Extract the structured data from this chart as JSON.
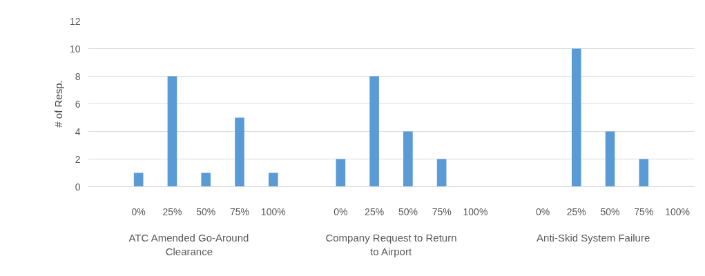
{
  "chart_data": {
    "type": "bar",
    "ylabel": "# of Resp.",
    "categories": [
      null,
      "0%",
      "25%",
      "50%",
      "75%",
      "100%",
      null,
      "0%",
      "25%",
      "50%",
      "75%",
      "100%",
      null,
      "0%",
      "25%",
      "50%",
      "75%",
      "100%"
    ],
    "values": [
      null,
      1,
      8,
      1,
      5,
      1,
      null,
      2,
      8,
      4,
      2,
      0,
      null,
      0,
      10,
      4,
      2,
      0
    ],
    "color": "#5b9bd5",
    "ylim": [
      0,
      12
    ],
    "yticks": [
      0,
      2,
      4,
      6,
      8,
      10,
      12
    ],
    "grid": "y",
    "annotations": [
      "ATC Amended Go-Around Clearance",
      "Company Request to Return to Airport",
      "Anti-Skid System Failure"
    ]
  }
}
